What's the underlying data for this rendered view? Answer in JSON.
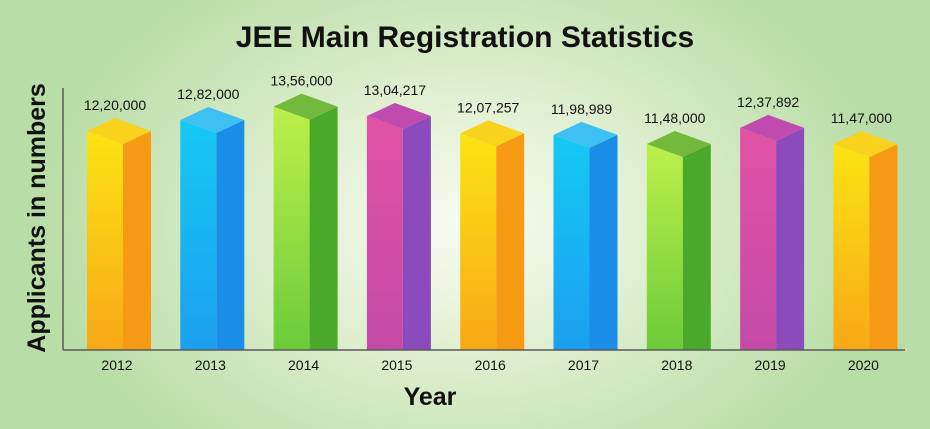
{
  "chart_data": {
    "type": "bar",
    "title": "JEE Main Registration Statistics",
    "xlabel": "Year",
    "ylabel": "Applicants in numbers",
    "categories": [
      "2012",
      "2013",
      "2014",
      "2015",
      "2016",
      "2017",
      "2018",
      "2019",
      "2020"
    ],
    "values": [
      1220000,
      1282000,
      1356000,
      1304217,
      1207257,
      1198989,
      1148000,
      1237892,
      1147000
    ],
    "value_labels": [
      "12,20,000",
      "12,82,000",
      "13,56,000",
      "13,04,217",
      "12,07,257",
      "11,98,989",
      "11,48,000",
      "12,37,892",
      "11,47,000"
    ],
    "ylim": [
      0,
      1460000
    ],
    "grid": false,
    "legend": "none",
    "bar_colors": [
      "orange",
      "blue",
      "green",
      "purple",
      "orange",
      "blue",
      "green",
      "purple",
      "orange"
    ],
    "palette": {
      "orange": {
        "top": "#f8d21c",
        "front_light": "#fbe414",
        "front_dark": "#f8a817",
        "side": "#f59a12"
      },
      "blue": {
        "top": "#3ec0f2",
        "front_light": "#16c9f4",
        "front_dark": "#1b9ff0",
        "side": "#1a8de8"
      },
      "green": {
        "top": "#73b93b",
        "front_light": "#bdf04a",
        "front_dark": "#6ccb3a",
        "side": "#4aa82a"
      },
      "purple": {
        "top": "#c04aae",
        "front_light": "#e252a5",
        "front_dark": "#c44aa8",
        "side": "#8b4bbd"
      }
    },
    "axis_color": "#5a5a5a"
  }
}
